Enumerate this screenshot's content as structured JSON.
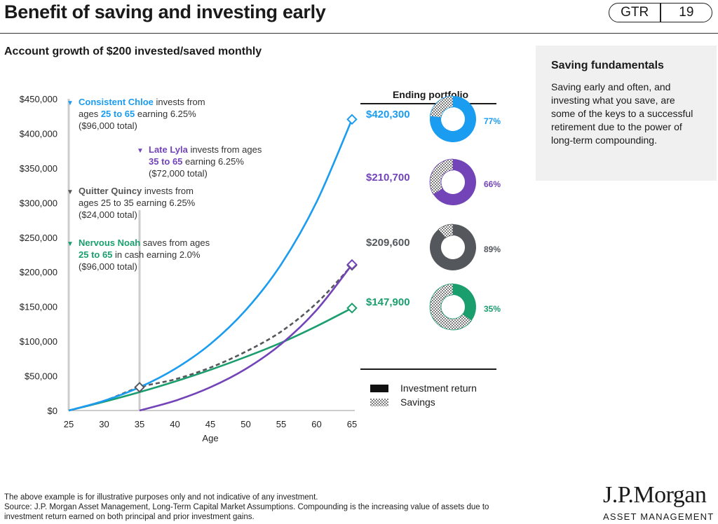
{
  "header": {
    "title": "Benefit of saving and investing early",
    "badge_left": "GTR",
    "badge_right": "19"
  },
  "subtitle": "Account growth of $200 invested/saved monthly",
  "sidebar": {
    "heading": "Saving fundamentals",
    "body": "Saving early and often, and investing what you save, are some of the keys to a successful retirement due to the power of long-term compounding."
  },
  "annotations": {
    "chloe": {
      "name": "Consistent Chloe",
      "t1": " invests from",
      "t2a": "ages ",
      "ages": "25 to 65",
      "t2b": " earning 6.25%",
      "t3": "($96,000 total)"
    },
    "lyla": {
      "name": "Late Lyla",
      "t1": " invests from ages",
      "ages": "35 to 65",
      "t2b": " earning 6.25%",
      "t3": "($72,000 total)"
    },
    "quincy": {
      "name": "Quitter Quincy",
      "t1": " invests from",
      "t2": "ages 25 to 35 earning 6.25%",
      "t3": "($24,000 total)"
    },
    "noah": {
      "name": "Nervous Noah",
      "t1": " saves from ages",
      "ages": "25 to 65",
      "t2b": " in cash earning 2.0%",
      "t3": "($96,000 total)"
    }
  },
  "ending_portfolio": {
    "title": "Ending portfolio",
    "items": [
      {
        "value": "$420,300",
        "pct_label": "77%",
        "investment_return_pct": 77,
        "color": "#1a9cf0"
      },
      {
        "value": "$210,700",
        "pct_label": "66%",
        "investment_return_pct": 66,
        "color": "#7244b8"
      },
      {
        "value": "$209,600",
        "pct_label": "89%",
        "investment_return_pct": 89,
        "color": "#54585c"
      },
      {
        "value": "$147,900",
        "pct_label": "35%",
        "investment_return_pct": 35,
        "color": "#1a9e6e"
      }
    ]
  },
  "legend": {
    "investment_return": "Investment return",
    "savings": "Savings"
  },
  "footnote": {
    "line1": "The above example is for illustrative purposes only and not indicative of any investment.",
    "line2": "Source: J.P. Morgan Asset Management, Long-Term Capital Market Assumptions. Compounding is the increasing value of assets due to",
    "line3": "investment return earned on both principal and prior investment gains."
  },
  "logo": {
    "name": "J.P.Morgan",
    "tagline": "ASSET MANAGEMENT"
  },
  "chart_data": {
    "type": "line",
    "xlabel": "Age",
    "ylabel": "",
    "xlim": [
      25,
      65
    ],
    "ylim": [
      0,
      450000
    ],
    "x_ticks": [
      25,
      30,
      35,
      40,
      45,
      50,
      55,
      60,
      65
    ],
    "y_ticks": [
      0,
      50000,
      100000,
      150000,
      200000,
      250000,
      300000,
      350000,
      400000,
      450000
    ],
    "y_tick_labels": [
      "$0",
      "$50,000",
      "$100,000",
      "$150,000",
      "$200,000",
      "$250,000",
      "$300,000",
      "$350,000",
      "$400,000",
      "$450,000"
    ],
    "x_tick_labels": [
      "25",
      "30",
      "35",
      "40",
      "45",
      "50",
      "55",
      "60",
      "65"
    ],
    "grid": false,
    "series": [
      {
        "name": "Consistent Chloe",
        "color": "#1a9cf0",
        "dashed": false,
        "x": [
          25,
          30,
          35,
          40,
          45,
          50,
          55,
          60,
          65
        ],
        "y": [
          0,
          14000,
          33500,
          60000,
          96000,
          145000,
          211000,
          301000,
          420300
        ]
      },
      {
        "name": "Late Lyla",
        "color": "#7244b8",
        "dashed": false,
        "x": [
          35,
          40,
          45,
          50,
          55,
          60,
          65
        ],
        "y": [
          0,
          14000,
          33500,
          60000,
          96000,
          145000,
          210700
        ]
      },
      {
        "name": "Quitter Quincy",
        "color": "#54585c",
        "dashed": true,
        "x": [
          25,
          30,
          35,
          40,
          45,
          50,
          55,
          60,
          65
        ],
        "y": [
          0,
          14000,
          33500,
          45000,
          62000,
          85000,
          114000,
          155000,
          209600
        ]
      },
      {
        "name": "Nervous Noah",
        "color": "#1a9e6e",
        "dashed": false,
        "x": [
          25,
          30,
          35,
          40,
          45,
          50,
          55,
          60,
          65
        ],
        "y": [
          0,
          12600,
          26500,
          41800,
          58700,
          77400,
          97900,
          121700,
          147900
        ]
      }
    ]
  }
}
